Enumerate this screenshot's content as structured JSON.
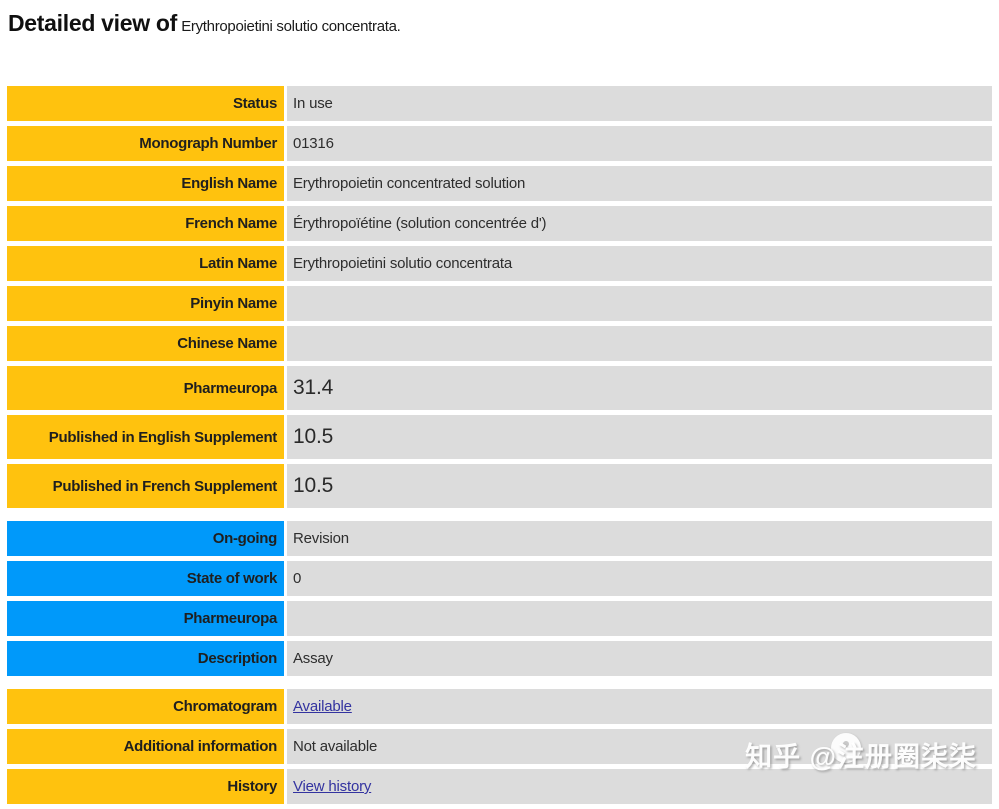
{
  "page": {
    "title_bold": "Detailed view of",
    "title_rest": "Erythropoietini solutio concentrata."
  },
  "colors": {
    "label_yellow": "#FFC20E",
    "label_blue": "#0099FA",
    "value_background": "#DCDCDC",
    "link": "#3333A0"
  },
  "table": {
    "rows": [
      {
        "label": "Status",
        "value": "In use"
      },
      {
        "label": "Monograph Number",
        "value": "01316"
      },
      {
        "label": "English Name",
        "value": "Erythropoietin concentrated solution"
      },
      {
        "label": "French Name",
        "value": "Érythropoïétine (solution concentrée d')"
      },
      {
        "label": "Latin Name",
        "value": "Erythropoietini solutio concentrata"
      },
      {
        "label": "Pinyin Name",
        "value": ""
      },
      {
        "label": "Chinese Name",
        "value": ""
      },
      {
        "label": "Pharmeuropa",
        "value": "31.4"
      },
      {
        "label": "Published in English Supplement",
        "value": "10.5"
      },
      {
        "label": "Published in French Supplement",
        "value": "10.5"
      },
      {
        "label": "On-going",
        "value": "Revision"
      },
      {
        "label": "State of work",
        "value": "0"
      },
      {
        "label": "Pharmeuropa",
        "value": ""
      },
      {
        "label": "Description",
        "value": "Assay"
      },
      {
        "label": "Chromatogram",
        "value": "Available"
      },
      {
        "label": "Additional information",
        "value": "Not available"
      },
      {
        "label": "History",
        "value": "View history"
      }
    ]
  },
  "watermark": {
    "text": "知乎 @注册圈柒柒"
  }
}
